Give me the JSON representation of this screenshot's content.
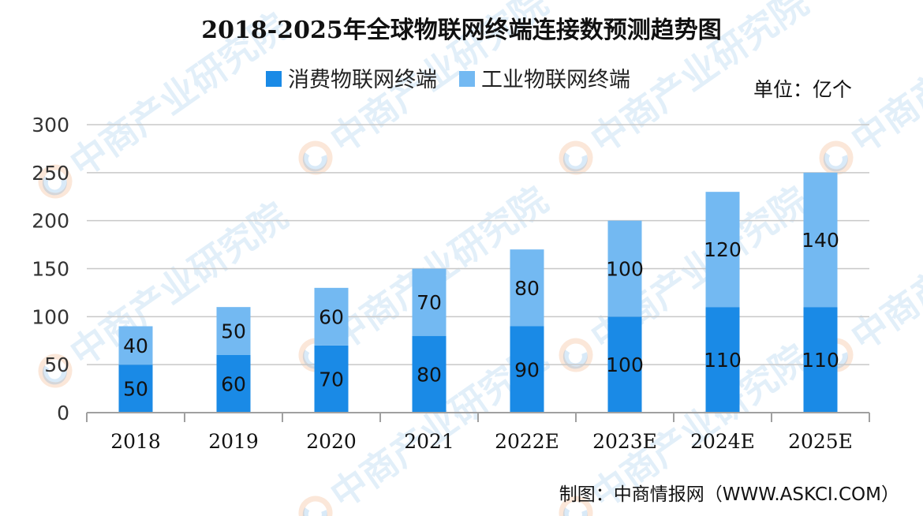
{
  "chart_data": {
    "type": "bar",
    "stacked": true,
    "title": "2018-2025年全球物联网终端连接数预测趋势图",
    "unit": "单位：亿个",
    "categories": [
      "2018",
      "2019",
      "2020",
      "2021",
      "2022E",
      "2023E",
      "2024E",
      "2025E"
    ],
    "series": [
      {
        "name": "消费物联网终端",
        "color": "#1a8ae6",
        "values": [
          50,
          60,
          70,
          80,
          90,
          100,
          110,
          110
        ]
      },
      {
        "name": "工业物联网终端",
        "color": "#73b9f2",
        "values": [
          40,
          50,
          60,
          70,
          80,
          100,
          120,
          140
        ]
      }
    ],
    "ylim": [
      0,
      300
    ],
    "yticks": [
      0,
      50,
      100,
      150,
      200,
      250,
      300
    ],
    "grid": true,
    "legend": "top-center",
    "source": "制图：中商情报网（WWW.ASKCI.COM）",
    "watermark": "中商产业研究院",
    "gridColor": "#c8c8c8",
    "axisColor": "#a0a0a0"
  }
}
